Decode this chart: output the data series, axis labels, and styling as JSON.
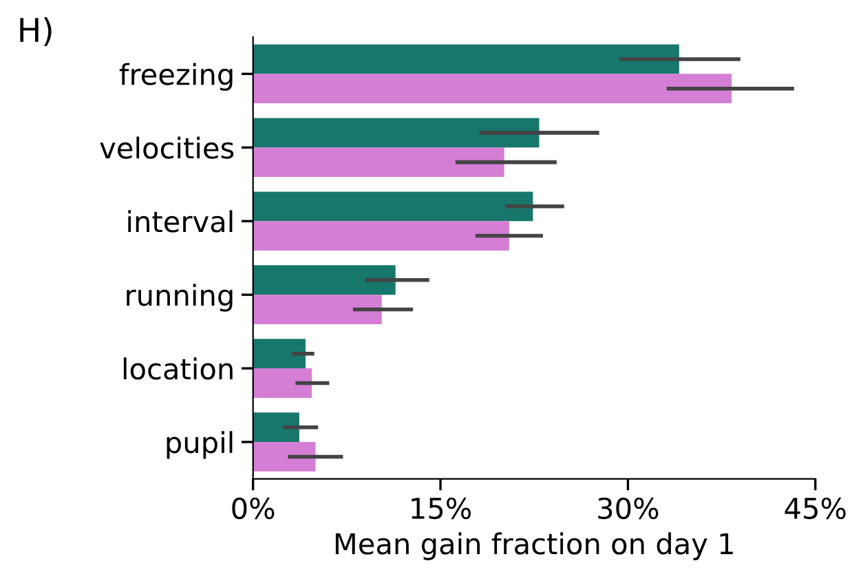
{
  "chart_data": {
    "type": "bar",
    "orientation": "horizontal",
    "xlabel": "Mean gain fraction on day 1",
    "annotations": [
      "H)"
    ],
    "categories": [
      "freezing",
      "velocities",
      "interval",
      "running",
      "location",
      "pupil"
    ],
    "series": [
      {
        "color": "#17776c",
        "values": [
          34.1,
          22.9,
          22.4,
          11.4,
          4.2,
          3.7
        ],
        "errors": [
          [
            29.3,
            39.0
          ],
          [
            18.1,
            27.7
          ],
          [
            20.2,
            24.9
          ],
          [
            9.0,
            14.1
          ],
          [
            3.1,
            4.9
          ],
          [
            2.4,
            5.2
          ]
        ]
      },
      {
        "color": "#d57ed5",
        "values": [
          38.3,
          20.1,
          20.5,
          10.3,
          4.7,
          5.0
        ],
        "errors": [
          [
            33.1,
            43.3
          ],
          [
            16.2,
            24.3
          ],
          [
            17.8,
            23.2
          ],
          [
            8.0,
            12.8
          ],
          [
            3.4,
            6.1
          ],
          [
            2.8,
            7.2
          ]
        ]
      }
    ],
    "xlim": [
      0,
      45
    ],
    "xticks": [
      {
        "value": 0,
        "label": "0%"
      },
      {
        "value": 15,
        "label": "15%"
      },
      {
        "value": 30,
        "label": "30%"
      },
      {
        "value": 45,
        "label": "45%"
      }
    ],
    "grid": false,
    "legend": false
  }
}
